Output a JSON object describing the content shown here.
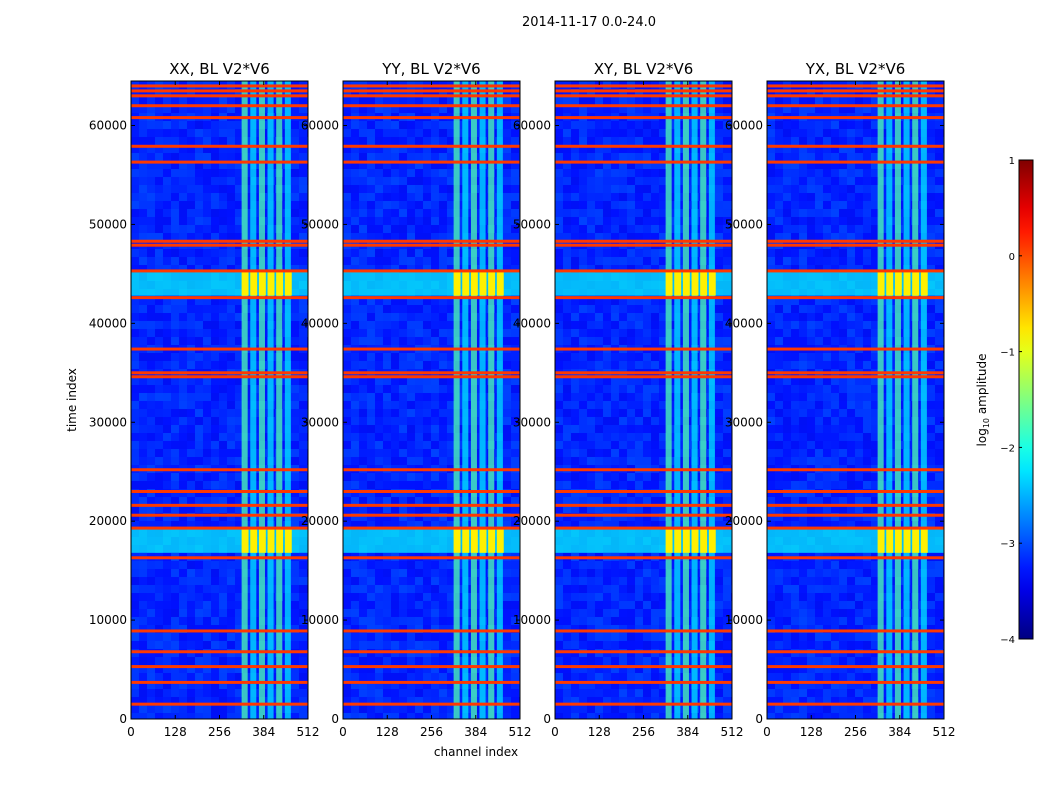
{
  "figure": {
    "suptitle": "2014-11-17 0.0-24.0",
    "xlabel": "channel index",
    "ylabel": "time index",
    "colorbar_label": "log10 amplitude",
    "colorbar_label_base": "log",
    "colorbar_label_sub": "10",
    "colorbar_label_rest": " amplitude"
  },
  "chart_data": {
    "type": "heatmap",
    "title": "2014-11-17 0.0-24.0",
    "xlabel": "channel index",
    "ylabel": "time index",
    "xlim": [
      0,
      512
    ],
    "ylim": [
      0,
      64500
    ],
    "xticks": [
      0,
      128,
      256,
      384,
      512
    ],
    "xtick_labels": [
      "0",
      "128",
      "256",
      "384",
      "512"
    ],
    "yticks": [
      0,
      10000,
      20000,
      30000,
      40000,
      50000,
      60000
    ],
    "ytick_labels": [
      "0",
      "10000",
      "20000",
      "30000",
      "40000",
      "50000",
      "60000"
    ],
    "colorbar": {
      "label": "log10 amplitude",
      "range": [
        -4,
        1
      ],
      "ticks": [
        -4,
        -3,
        -2,
        -1,
        0,
        1
      ],
      "tick_labels": [
        "−4",
        "−3",
        "−2",
        "−1",
        "0",
        "1"
      ],
      "colormap": "jet"
    },
    "panels": [
      {
        "title": "XX, BL V2*V6",
        "pol": "XX"
      },
      {
        "title": "YY, BL V2*V6",
        "pol": "YY"
      },
      {
        "title": "XY, BL V2*V6",
        "pol": "XY"
      },
      {
        "title": "YX, BL V2*V6",
        "pol": "YX"
      }
    ],
    "features": {
      "background_level": -3.2,
      "rfi_channel_band": [
        320,
        470
      ],
      "rfi_band_level": -1.9,
      "rfi_block_time_ranges": [
        [
          16800,
          19300
        ],
        [
          42800,
          45200
        ]
      ],
      "rfi_block_level": -0.8,
      "broadband_flag_rows": [
        1500,
        3700,
        5300,
        6800,
        8900,
        16300,
        19300,
        20600,
        21600,
        23000,
        25200,
        34600,
        35000,
        37400,
        42600,
        45300,
        47900,
        48300,
        56300,
        57900,
        60800,
        62000,
        63000,
        63500,
        64000
      ],
      "broadband_flag_level": 0.1
    }
  }
}
